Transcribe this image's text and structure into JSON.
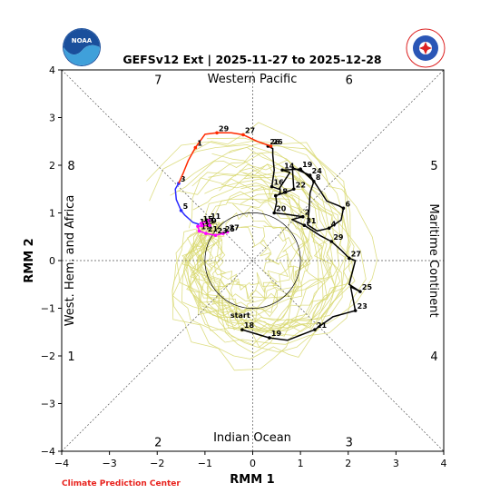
{
  "chart_data": {
    "type": "line",
    "title": "GEFSv12 Ext | 2025-11-27 to 2025-12-28",
    "xlabel": "RMM 1",
    "ylabel": "RMM 2",
    "xlim": [
      -4,
      4
    ],
    "ylim": [
      -4,
      4
    ],
    "x_ticks": [
      "−4",
      "−3",
      "−2",
      "−1",
      "0",
      "1",
      "2",
      "3",
      "4"
    ],
    "y_ticks": [
      "−4",
      "−3",
      "−2",
      "−1",
      "0",
      "1",
      "2",
      "3",
      "4"
    ],
    "grid": false,
    "regions": {
      "top": "Western Pacific",
      "bottom": "Indian Ocean",
      "left": "West. Hem. and Africa",
      "right": "Maritime Continent"
    },
    "phase_numbers": [
      "1",
      "2",
      "3",
      "4",
      "5",
      "6",
      "7",
      "8"
    ],
    "start_label": "start",
    "colors": {
      "observed": "#000000",
      "ensemble": "#d8d870",
      "week1": "#ff00ff",
      "week2": "#2b2bff",
      "week3": "#ff2a00",
      "week4": "#ff4422",
      "unit_circle": "#000000"
    },
    "series": [
      {
        "key": "observed",
        "points": [
          [
            -0.22,
            -1.45,
            "18"
          ],
          [
            0.35,
            -1.62,
            "19"
          ],
          [
            0.73,
            -1.67,
            ""
          ],
          [
            1.3,
            -1.45,
            "21"
          ],
          [
            1.68,
            -1.18,
            ""
          ],
          [
            2.15,
            -1.05,
            "23"
          ],
          [
            2.05,
            -0.55,
            ""
          ],
          [
            2.25,
            -0.65,
            "25"
          ],
          [
            2.02,
            -0.5,
            ""
          ],
          [
            2.15,
            0.0,
            ""
          ],
          [
            2.02,
            0.05,
            "27"
          ],
          [
            1.85,
            0.22,
            ""
          ],
          [
            1.65,
            0.4,
            "29"
          ],
          [
            1.42,
            0.52,
            ""
          ],
          [
            1.08,
            0.74,
            "31"
          ],
          [
            0.82,
            0.86,
            ""
          ],
          [
            1.05,
            0.92,
            "2"
          ],
          [
            0.72,
            0.97,
            ""
          ],
          [
            0.45,
            1.0,
            "20"
          ],
          [
            0.5,
            1.22,
            ""
          ],
          [
            0.48,
            1.36,
            "18"
          ],
          [
            0.65,
            1.42,
            ""
          ],
          [
            0.86,
            1.5,
            "22"
          ],
          [
            0.83,
            1.95,
            ""
          ],
          [
            1.2,
            1.79,
            "24"
          ],
          [
            1.55,
            1.25,
            ""
          ],
          [
            1.8,
            1.15,
            ""
          ],
          [
            1.9,
            1.1,
            "6"
          ],
          [
            1.85,
            0.85,
            ""
          ],
          [
            1.6,
            0.68,
            "4"
          ],
          [
            1.35,
            0.62,
            ""
          ],
          [
            1.15,
            0.75,
            ""
          ],
          [
            1.18,
            1.05,
            ""
          ],
          [
            1.2,
            1.42,
            ""
          ],
          [
            1.28,
            1.66,
            "8"
          ],
          [
            1.0,
            1.92,
            "19"
          ],
          [
            0.62,
            1.9,
            "14"
          ],
          [
            0.78,
            1.85,
            ""
          ],
          [
            0.55,
            1.5,
            ""
          ],
          [
            0.4,
            1.55,
            "16"
          ],
          [
            0.45,
            1.9,
            ""
          ],
          [
            0.42,
            2.22,
            ""
          ],
          [
            0.42,
            2.35,
            ""
          ],
          [
            0.32,
            2.4,
            "26"
          ]
        ]
      },
      {
        "key": "week1",
        "points": [
          [
            -0.53,
            0.6,
            "27"
          ],
          [
            -0.62,
            0.57,
            "25"
          ],
          [
            -0.78,
            0.53,
            "23"
          ],
          [
            -0.98,
            0.57,
            "21"
          ],
          [
            -1.12,
            0.62,
            "19"
          ],
          [
            -1.15,
            0.72,
            "17"
          ],
          [
            -1.06,
            0.73,
            "13"
          ],
          [
            -0.9,
            0.74,
            "9"
          ],
          [
            -0.92,
            0.84,
            "11"
          ],
          [
            -1.08,
            0.78,
            "15"
          ]
        ]
      },
      {
        "key": "week2",
        "points": [
          [
            -1.12,
            0.76,
            ""
          ],
          [
            -1.25,
            0.8,
            ""
          ],
          [
            -1.42,
            0.95,
            ""
          ],
          [
            -1.5,
            1.05,
            "5"
          ],
          [
            -1.6,
            1.28,
            ""
          ],
          [
            -1.62,
            1.5,
            ""
          ],
          [
            -1.55,
            1.62,
            "3"
          ]
        ]
      },
      {
        "key": "week3",
        "points": [
          [
            -1.55,
            1.62,
            ""
          ],
          [
            -1.45,
            1.85,
            ""
          ],
          [
            -1.35,
            2.1,
            ""
          ],
          [
            -1.2,
            2.37,
            "1"
          ],
          [
            -1.0,
            2.65,
            ""
          ],
          [
            -0.75,
            2.68,
            "29"
          ],
          [
            -0.45,
            2.68,
            ""
          ],
          [
            -0.2,
            2.64,
            "27"
          ],
          [
            0.1,
            2.5,
            ""
          ],
          [
            0.38,
            2.4,
            "26"
          ]
        ]
      }
    ]
  },
  "footer": {
    "credit": "Climate Prediction Center"
  },
  "logos": {
    "left": "NOAA",
    "right": "NATIONAL WEATHER SERVICE"
  }
}
